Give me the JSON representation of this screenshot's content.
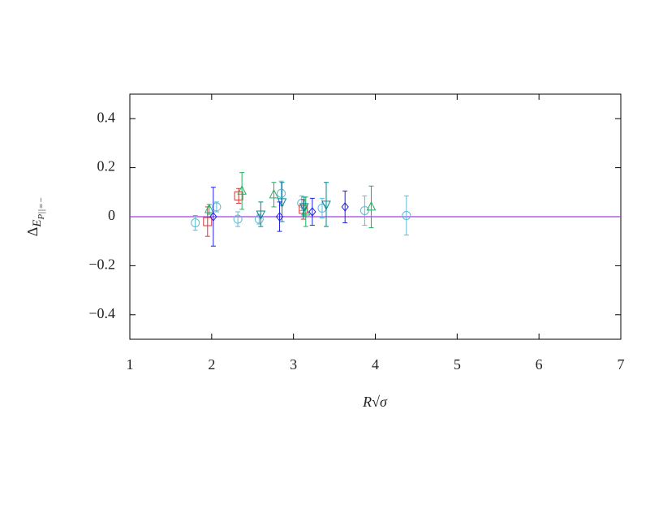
{
  "chart_data": {
    "type": "scatter",
    "x_label": "R√σ",
    "y_label": {
      "main": "Δ",
      "sub": "E",
      "subsub": "P||=−"
    },
    "xlim": [
      1,
      7
    ],
    "xticks": [
      1,
      2,
      3,
      4,
      5,
      6,
      7
    ],
    "ylim": [
      -0.5,
      0.5
    ],
    "yticks": [
      {
        "value": -0.4,
        "label": "−0.4"
      },
      {
        "value": -0.2,
        "label": "−0.2"
      },
      0,
      0.2,
      0.4
    ],
    "hline": {
      "value": 0,
      "color": "#a040e0"
    },
    "series": [
      {
        "marker": "circle",
        "color": "#5bbcd8",
        "x": [
          1.8,
          2.06,
          2.32,
          2.58,
          2.85,
          3.1,
          3.35,
          3.87,
          4.38
        ],
        "values": [
          -0.025,
          0.04,
          -0.01,
          -0.01,
          0.095,
          0.055,
          0.035,
          0.025,
          0.005
        ],
        "errors": [
          0.03,
          0.02,
          0.03,
          0.02,
          0.05,
          0.03,
          0.04,
          0.06,
          0.08
        ]
      },
      {
        "marker": "square",
        "color": "#e03030",
        "x": [
          1.95,
          2.33,
          3.12
        ],
        "values": [
          -0.02,
          0.085,
          0.03
        ],
        "errors": [
          0.06,
          0.03,
          0.04
        ]
      },
      {
        "marker": "triangle-up",
        "color": "#20b060",
        "x": [
          1.97,
          2.37,
          2.76,
          3.15,
          3.95
        ],
        "values": [
          0.03,
          0.105,
          0.09,
          0.02,
          0.04
        ],
        "errors": [
          0.02,
          0.075,
          0.05,
          0.06,
          0.085
        ]
      },
      {
        "marker": "triangle-down",
        "color": "#008890",
        "x": [
          2.6,
          2.86,
          3.13,
          3.4
        ],
        "values": [
          0.01,
          0.06,
          0.04,
          0.05
        ],
        "errors": [
          0.05,
          0.08,
          0.04,
          0.09
        ]
      },
      {
        "marker": "diamond",
        "color": "#2020e0",
        "x": [
          2.02,
          2.83,
          3.23,
          3.63
        ],
        "values": [
          0.0,
          0.0,
          0.02,
          0.04
        ],
        "errors": [
          0.12,
          0.06,
          0.055,
          0.065
        ]
      }
    ]
  }
}
